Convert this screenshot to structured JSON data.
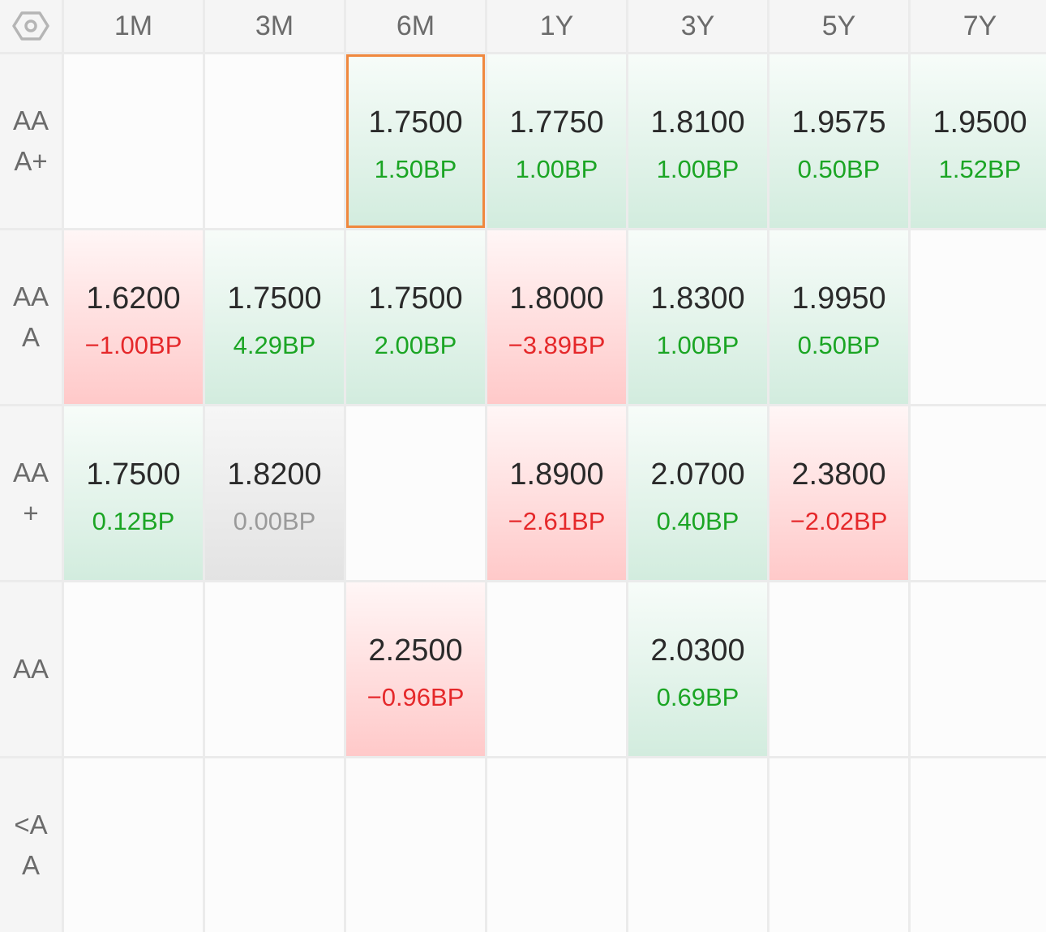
{
  "columns": [
    "1M",
    "3M",
    "6M",
    "1Y",
    "3Y",
    "5Y",
    "7Y"
  ],
  "rows": [
    {
      "label": "AAA+",
      "cells": [
        null,
        null,
        {
          "value": "1.7500",
          "change": "1.50BP",
          "dir": "up",
          "selected": true
        },
        {
          "value": "1.7750",
          "change": "1.00BP",
          "dir": "up"
        },
        {
          "value": "1.8100",
          "change": "1.00BP",
          "dir": "up"
        },
        {
          "value": "1.9575",
          "change": "0.50BP",
          "dir": "up"
        },
        {
          "value": "1.9500",
          "change": "1.52BP",
          "dir": "up"
        }
      ]
    },
    {
      "label": "AAA",
      "cells": [
        {
          "value": "1.6200",
          "change": "−1.00BP",
          "dir": "down"
        },
        {
          "value": "1.7500",
          "change": "4.29BP",
          "dir": "up"
        },
        {
          "value": "1.7500",
          "change": "2.00BP",
          "dir": "up"
        },
        {
          "value": "1.8000",
          "change": "−3.89BP",
          "dir": "down"
        },
        {
          "value": "1.8300",
          "change": "1.00BP",
          "dir": "up"
        },
        {
          "value": "1.9950",
          "change": "0.50BP",
          "dir": "up"
        },
        null
      ]
    },
    {
      "label": "AA+",
      "cells": [
        {
          "value": "1.7500",
          "change": "0.12BP",
          "dir": "up"
        },
        {
          "value": "1.8200",
          "change": "0.00BP",
          "dir": "flat"
        },
        null,
        {
          "value": "1.8900",
          "change": "−2.61BP",
          "dir": "down"
        },
        {
          "value": "2.0700",
          "change": "0.40BP",
          "dir": "up"
        },
        {
          "value": "2.3800",
          "change": "−2.02BP",
          "dir": "down"
        },
        null
      ]
    },
    {
      "label": "AA",
      "cells": [
        null,
        null,
        {
          "value": "2.2500",
          "change": "−0.96BP",
          "dir": "down"
        },
        null,
        {
          "value": "2.0300",
          "change": "0.69BP",
          "dir": "up"
        },
        null,
        null
      ]
    },
    {
      "label": "<AA",
      "cells": [
        null,
        null,
        null,
        null,
        null,
        null,
        null
      ]
    }
  ],
  "icons": {
    "corner": "settings-hexagon-icon"
  },
  "colors": {
    "up": "#1ba524",
    "down": "#e5282a",
    "flat": "#9a9a9a",
    "selected_border": "#f0883e"
  }
}
